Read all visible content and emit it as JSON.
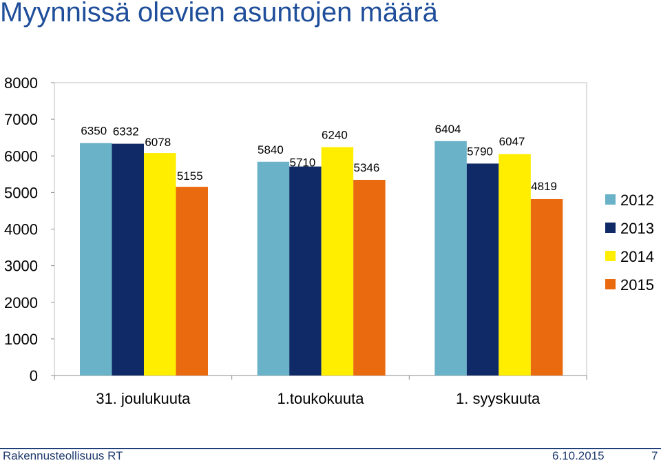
{
  "title": "Myynnissä olevien asuntojen määrä",
  "footer": {
    "organization": "Rakennusteollisuus RT",
    "date": "6.10.2015",
    "page": "7"
  },
  "chart_data": {
    "type": "bar",
    "categories": [
      "31. joulukuuta",
      "1.toukokuuta",
      "1. syyskuuta"
    ],
    "series": [
      {
        "name": "2012",
        "color": "#6ab2c8",
        "values": [
          6350,
          5840,
          6404
        ]
      },
      {
        "name": "2013",
        "color": "#0f2a66",
        "values": [
          6332,
          5710,
          5790
        ]
      },
      {
        "name": "2014",
        "color": "#ffee00",
        "values": [
          6078,
          6240,
          6047
        ]
      },
      {
        "name": "2015",
        "color": "#ea6a0f",
        "values": [
          5155,
          5346,
          4819
        ]
      }
    ],
    "ylim": [
      0,
      8000
    ],
    "yticks": [
      0,
      1000,
      2000,
      3000,
      4000,
      5000,
      6000,
      7000,
      8000
    ],
    "grid": false,
    "legend": "right",
    "data_labels": true
  }
}
